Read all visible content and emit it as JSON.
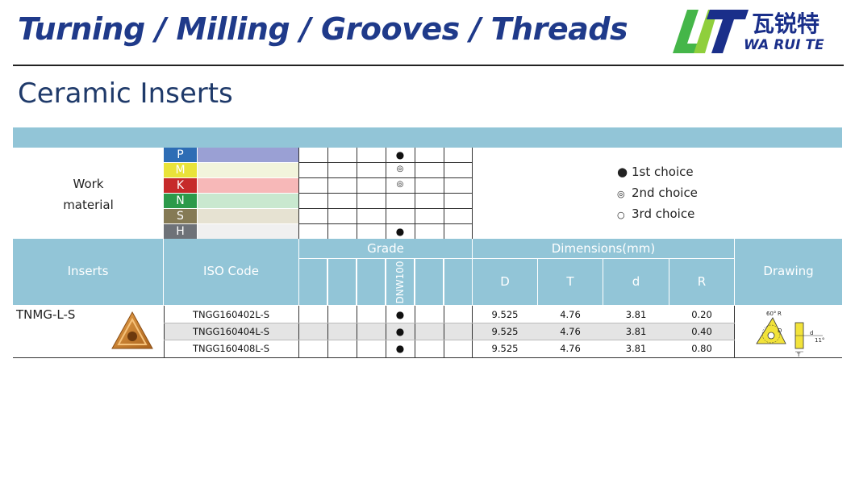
{
  "header": {
    "title": "Turning / Milling / Grooves / Threads",
    "logo_cn": "瓦锐特",
    "logo_en": "WA RUI TE"
  },
  "page": {
    "section_title": "Ceramic Inserts"
  },
  "work_material": {
    "label_line1": "Work",
    "label_line2": "material",
    "rows": [
      {
        "letter": "P",
        "letter_color": "#2e6db5",
        "bar_color": "#9aa0d4",
        "mark": "●"
      },
      {
        "letter": "M",
        "letter_color": "#e9e33a",
        "bar_color": "#f2f4dc",
        "mark": "◎"
      },
      {
        "letter": "K",
        "letter_color": "#c62a2a",
        "bar_color": "#f7b8b8",
        "mark": "◎"
      },
      {
        "letter": "N",
        "letter_color": "#2c9a4a",
        "bar_color": "#c9e8cf",
        "mark": ""
      },
      {
        "letter": "S",
        "letter_color": "#857a55",
        "bar_color": "#e6e2d2",
        "mark": ""
      },
      {
        "letter": "H",
        "letter_color": "#6e7278",
        "bar_color": "#f0f0f0",
        "mark": "●"
      }
    ]
  },
  "legend": [
    {
      "symbol": "●",
      "label": "1st choice"
    },
    {
      "symbol": "◎",
      "label": "2nd choice"
    },
    {
      "symbol": "○",
      "label": "3rd choice"
    }
  ],
  "table": {
    "headers": {
      "inserts": "Inserts",
      "iso_code": "ISO Code",
      "grade": "Grade",
      "grade_name": "DNW100",
      "dimensions": "Dimensions(mm)",
      "D": "D",
      "T": "T",
      "d": "d",
      "R": "R",
      "drawing": "Drawing"
    },
    "insert_name": "TNMG-L-S",
    "rows": [
      {
        "iso": "TNGG160402L-S",
        "grade_mark": "●",
        "D": "9.525",
        "T": "4.76",
        "d": "3.81",
        "R": "0.20"
      },
      {
        "iso": "TNGG160404L-S",
        "grade_mark": "●",
        "D": "9.525",
        "T": "4.76",
        "d": "3.81",
        "R": "0.40"
      },
      {
        "iso": "TNGG160408L-S",
        "grade_mark": "●",
        "D": "9.525",
        "T": "4.76",
        "d": "3.81",
        "R": "0.80"
      }
    ],
    "drawing_labels": {
      "angle": "60°",
      "radius": "R",
      "diameter": "D",
      "hole": "d",
      "thickness": "T",
      "clearance": "11°"
    }
  },
  "colors": {
    "brand_blue": "#1f3a8a",
    "table_header": "#92c5d7",
    "insert_gold": "#c9822a",
    "drawing_yellow": "#f2e33a"
  }
}
